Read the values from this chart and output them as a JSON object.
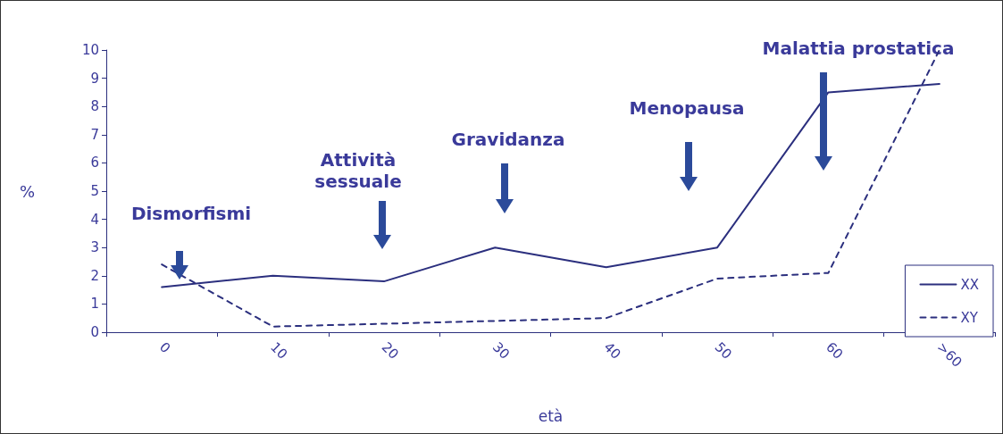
{
  "chart_data": {
    "type": "line",
    "categories": [
      "0",
      "10",
      "20",
      "30",
      "40",
      "50",
      "60",
      ">60"
    ],
    "series": [
      {
        "name": "XX",
        "color": "#2b2f7e",
        "line_style": "solid",
        "values": [
          1.6,
          2.0,
          1.8,
          3.0,
          2.3,
          3.0,
          8.5,
          8.8
        ]
      },
      {
        "name": "XY",
        "color": "#2b2f7e",
        "line_style": "dashed",
        "values": [
          2.4,
          0.2,
          0.3,
          0.4,
          0.5,
          1.9,
          2.1,
          10
        ]
      }
    ],
    "xlabel": "età",
    "ylabel": "%",
    "ylim": [
      0,
      10
    ],
    "yticks": [
      0,
      1,
      2,
      3,
      4,
      5,
      6,
      7,
      8,
      9,
      10
    ],
    "grid": false,
    "marker": "none",
    "legend": "bottom right",
    "annotations": [
      "Dismorfismi",
      "Attività\nsessuale",
      "Gravidanza",
      "Menopausa",
      "Malattia prostatica"
    ]
  }
}
